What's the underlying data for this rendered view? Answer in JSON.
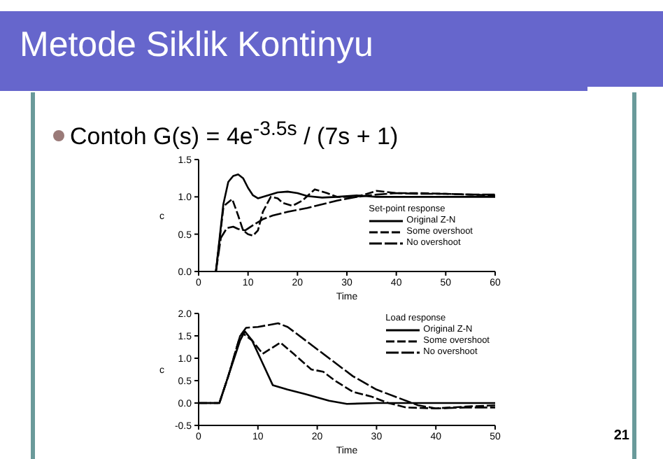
{
  "chart_data": [
    {
      "type": "line",
      "title": "Metode Siklik Kontinyu",
      "subtitle": "Contoh G(s) = 4e$^{-3.5s}$ / (7s + 1)",
      "xlabel": "Time",
      "ylabel": "c",
      "legend_title": "Set-point response",
      "legend": "right",
      "xlim": [
        0,
        60
      ],
      "ylim": [
        0,
        1.5
      ],
      "xticks": [
        0,
        10,
        20,
        30,
        40,
        50,
        60
      ],
      "yticks": [
        {
          "value": 0,
          "label": "0.0"
        },
        0.5,
        {
          "value": 1,
          "label": "1.0"
        },
        1.5
      ],
      "series": [
        {
          "name": "Original Z-N",
          "color": "#000000",
          "line_style": "solid",
          "x": [
            3.5,
            5,
            6,
            7,
            8,
            9,
            10,
            11,
            12,
            14,
            16,
            18,
            20,
            22,
            25,
            28,
            32,
            36,
            40,
            50,
            60
          ],
          "values": [
            0,
            0.9,
            1.2,
            1.28,
            1.3,
            1.25,
            1.12,
            1.02,
            0.98,
            1.02,
            1.06,
            1.07,
            1.05,
            1.01,
            0.99,
            1.0,
            1.02,
            1.0,
            1.0,
            1.0,
            1.0
          ]
        },
        {
          "name": "Some overshoot",
          "color": "#000000",
          "line_style": "dashed",
          "x": [
            3.5,
            5,
            5.5,
            6.8,
            8,
            9,
            10,
            11,
            12,
            13,
            14.6,
            16,
            17,
            19,
            21,
            23.5,
            26,
            28,
            32,
            36,
            40,
            45,
            50,
            55,
            60
          ],
          "values": [
            0,
            0.85,
            0.9,
            0.97,
            0.75,
            0.55,
            0.5,
            0.48,
            0.55,
            0.8,
            1.0,
            0.98,
            0.92,
            0.88,
            0.95,
            1.1,
            1.05,
            1.0,
            1.0,
            1.08,
            1.05,
            1.05,
            1.04,
            1.03,
            1.02
          ]
        },
        {
          "name": "No overshoot",
          "color": "#000000",
          "line_style": "dashed",
          "x": [
            3.5,
            4.5,
            5.7,
            7,
            8,
            9.4,
            11,
            13,
            15,
            18,
            22,
            25,
            28,
            32,
            36,
            40,
            45,
            50,
            55,
            60
          ],
          "values": [
            0,
            0.45,
            0.58,
            0.6,
            0.57,
            0.55,
            0.62,
            0.7,
            0.75,
            0.8,
            0.85,
            0.9,
            0.95,
            1.0,
            1.03,
            1.05,
            1.04,
            1.04,
            1.03,
            1.03
          ]
        }
      ]
    },
    {
      "type": "line",
      "xlabel": "Time",
      "ylabel": "c",
      "legend_title": "Load response",
      "legend": "top right",
      "xlim": [
        0,
        50
      ],
      "ylim": [
        -0.5,
        2.0
      ],
      "xticks": [
        0,
        10,
        20,
        30,
        40,
        50
      ],
      "yticks": [
        -0.5,
        {
          "value": 0,
          "label": "0.0"
        },
        0.5,
        {
          "value": 1,
          "label": "1.0"
        },
        1.5,
        {
          "value": 2,
          "label": "2.0"
        }
      ],
      "annotations": [
        "21"
      ],
      "series": [
        {
          "name": "Original Z-N",
          "color": "#000000",
          "line_style": "solid",
          "x": [
            0,
            3.5,
            5,
            7,
            7.8,
            9,
            10.4,
            12.5,
            15,
            18,
            22,
            25,
            30,
            40,
            50
          ],
          "values": [
            0,
            0,
            0.6,
            1.4,
            1.6,
            1.4,
            1.0,
            0.4,
            0.3,
            0.2,
            0.05,
            -0.02,
            0,
            0,
            0
          ]
        },
        {
          "name": "Some overshoot",
          "color": "#000000",
          "line_style": "dashed",
          "x": [
            0,
            3.5,
            5,
            7,
            7.5,
            9,
            10.8,
            12,
            13.8,
            16,
            19,
            21,
            23,
            26,
            29,
            32,
            35,
            40,
            45,
            50
          ],
          "values": [
            0,
            0,
            0.6,
            1.5,
            1.55,
            1.4,
            1.1,
            1.2,
            1.35,
            1.1,
            0.75,
            0.7,
            0.5,
            0.25,
            0.15,
            0,
            -0.1,
            -0.12,
            -0.08,
            -0.05
          ]
        },
        {
          "name": "No overshoot",
          "color": "#000000",
          "line_style": "dashed",
          "x": [
            0,
            3.5,
            5,
            7,
            8,
            10,
            13.4,
            15,
            18,
            22,
            26,
            30,
            34,
            37,
            40,
            45,
            50
          ],
          "values": [
            0,
            0,
            0.6,
            1.5,
            1.68,
            1.7,
            1.78,
            1.7,
            1.4,
            1.0,
            0.6,
            0.3,
            0.1,
            -0.05,
            -0.12,
            -0.1,
            -0.1
          ]
        }
      ]
    }
  ]
}
